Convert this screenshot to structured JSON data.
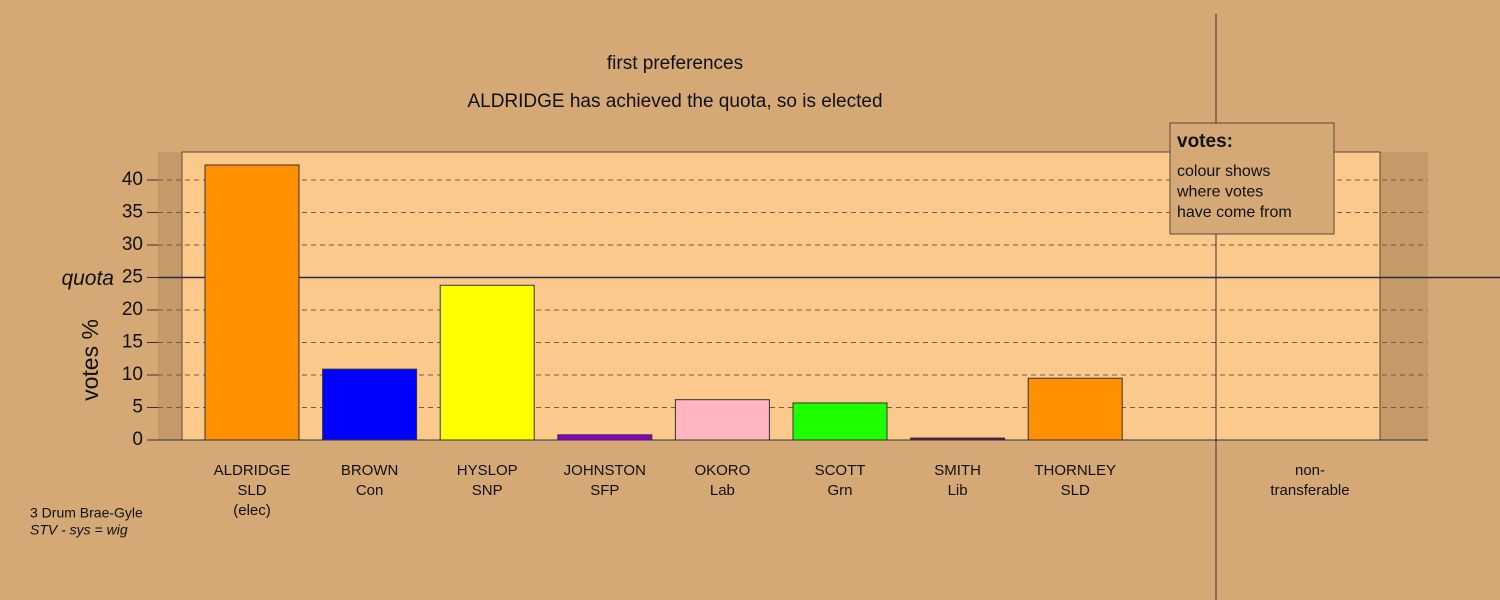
{
  "chart_data": {
    "type": "bar",
    "title": "first preferences",
    "subtitle": "ALDRIDGE has achieved the quota, so is elected",
    "y_label": "votes %",
    "categories": [
      [
        "ALDRIDGE",
        "SLD",
        "(elec)"
      ],
      [
        "BROWN",
        "Con"
      ],
      [
        "HYSLOP",
        "SNP"
      ],
      [
        "JOHNSTON",
        "SFP"
      ],
      [
        "OKORO",
        "Lab"
      ],
      [
        "SCOTT",
        "Grn"
      ],
      [
        "SMITH",
        "Lib"
      ],
      [
        "THORNLEY",
        "SLD"
      ],
      [
        "non-",
        "transferable"
      ]
    ],
    "values": [
      42.3,
      10.9,
      23.8,
      0.8,
      6.2,
      5.7,
      0.3,
      9.5,
      0
    ],
    "colors": [
      "#ff9100",
      "#0000ff",
      "#ffff00",
      "#8a00c8",
      "#ffb6c1",
      "#1eff00",
      "#7a004a",
      "#ff9100",
      "#555555"
    ],
    "ylim": [
      0,
      44.3
    ],
    "yticks": [
      0,
      5,
      10,
      15,
      20,
      25,
      30,
      35,
      40
    ],
    "grid": true,
    "quota": {
      "value": 25,
      "label": "quota"
    },
    "legend": {
      "title": "votes:",
      "lines": [
        "colour shows",
        "where votes",
        "have come from"
      ]
    },
    "footer": [
      "3 Drum Brae-Gyle",
      "STV - sys = wig"
    ]
  }
}
